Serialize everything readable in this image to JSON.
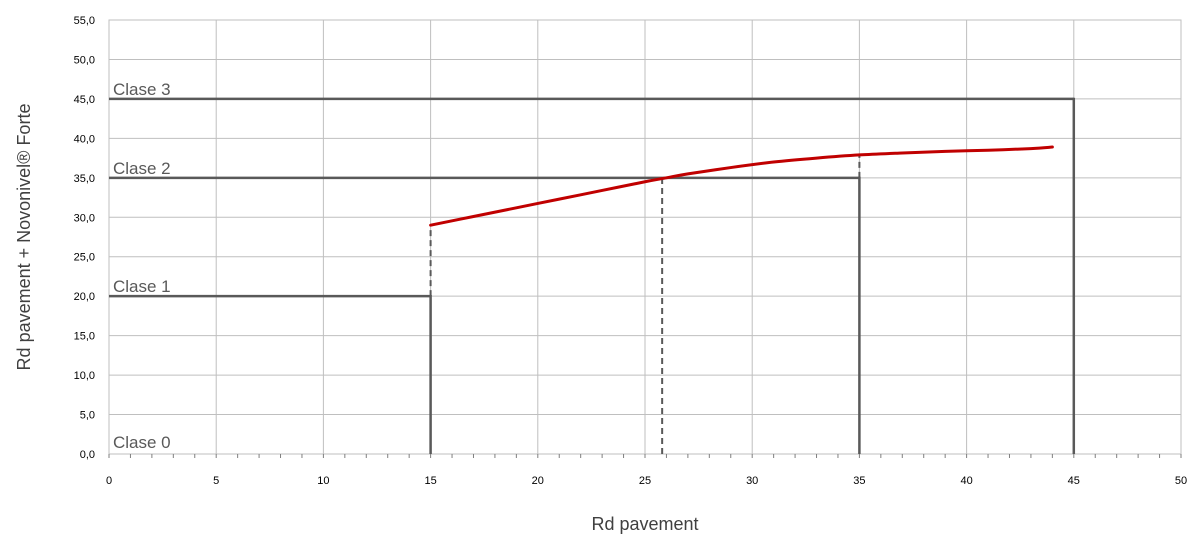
{
  "chart_data": {
    "type": "line",
    "title": "",
    "xlabel": "Rd pavement",
    "ylabel": "Rd pavement + Novonivel® Forte",
    "xlim": [
      0,
      50
    ],
    "ylim": [
      0,
      55
    ],
    "x_ticks": [
      0,
      5,
      10,
      15,
      20,
      25,
      30,
      35,
      40,
      45,
      50
    ],
    "x_tick_labels": [
      "0",
      "5",
      "10",
      "15",
      "20",
      "25",
      "30",
      "35",
      "40",
      "45",
      "50"
    ],
    "y_ticks": [
      0,
      5,
      10,
      15,
      20,
      25,
      30,
      35,
      40,
      45,
      50,
      55
    ],
    "y_tick_labels": [
      "0,0",
      "5,0",
      "10,0",
      "15,0",
      "20,0",
      "25,0",
      "30,0",
      "35,0",
      "40,0",
      "45,0",
      "50,0",
      "55,0"
    ],
    "grid": true,
    "legend": "none",
    "series": [
      {
        "color": "#c00000",
        "points": [
          [
            15,
            29.0
          ],
          [
            17,
            30.1
          ],
          [
            19,
            31.2
          ],
          [
            21,
            32.3
          ],
          [
            23,
            33.4
          ],
          [
            25,
            34.5
          ],
          [
            26,
            35.0
          ],
          [
            27,
            35.5
          ],
          [
            29,
            36.3
          ],
          [
            31,
            37.0
          ],
          [
            33,
            37.5
          ],
          [
            35,
            37.9
          ],
          [
            37,
            38.15
          ],
          [
            39,
            38.35
          ],
          [
            41,
            38.5
          ],
          [
            43,
            38.7
          ],
          [
            44,
            38.9
          ]
        ]
      }
    ],
    "class_boundaries": [
      {
        "label": "Clase 0",
        "y": 0,
        "x_end": 15
      },
      {
        "label": "Clase 1",
        "y": 20,
        "x_end": 15
      },
      {
        "label": "Clase 2",
        "y": 35,
        "x_end": 35
      },
      {
        "label": "Clase 3",
        "y": 45,
        "x_end": 45
      }
    ],
    "dashed_guides": [
      {
        "x": 15,
        "y_from": 20,
        "y_to": 29
      },
      {
        "x": 25.8,
        "y_from": 0,
        "y_to": 35
      },
      {
        "x": 35,
        "y_from": 35,
        "y_to": 38
      }
    ],
    "colors": {
      "curve": "#c00000",
      "class_lines": "#595959",
      "grid": "#bfbfbf"
    }
  }
}
